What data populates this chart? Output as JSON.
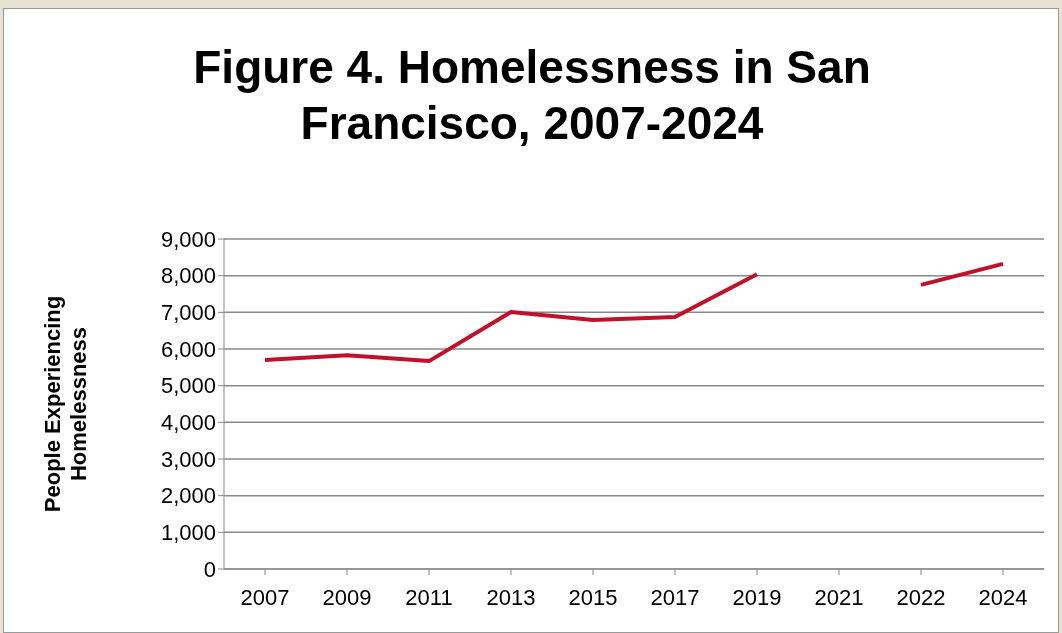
{
  "chart_data": {
    "type": "line",
    "title": "Figure 4. Homelessness in San Francisco, 2007-2024",
    "ylabel": "People Experiencing Homelessness",
    "categories": [
      "2007",
      "2009",
      "2011",
      "2013",
      "2015",
      "2017",
      "2019",
      "2021",
      "2022",
      "2024"
    ],
    "series": [
      {
        "color": "#c0102a",
        "values": [
          5700,
          5830,
          5670,
          7010,
          6790,
          6870,
          8040,
          null,
          7750,
          8320
        ]
      }
    ],
    "ylim": [
      0,
      9000
    ],
    "yticks": [
      {
        "value": 0,
        "label": "0"
      },
      {
        "value": 1000,
        "label": "1,000"
      },
      {
        "value": 2000,
        "label": "2,000"
      },
      {
        "value": 3000,
        "label": "3,000"
      },
      {
        "value": 4000,
        "label": "4,000"
      },
      {
        "value": 5000,
        "label": "5,000"
      },
      {
        "value": 6000,
        "label": "6,000"
      },
      {
        "value": 7000,
        "label": "7,000"
      },
      {
        "value": 8000,
        "label": "8,000"
      },
      {
        "value": 9000,
        "label": "9,000"
      }
    ],
    "grid": "y",
    "legend": false,
    "marker": "none",
    "line_style": "solid"
  }
}
